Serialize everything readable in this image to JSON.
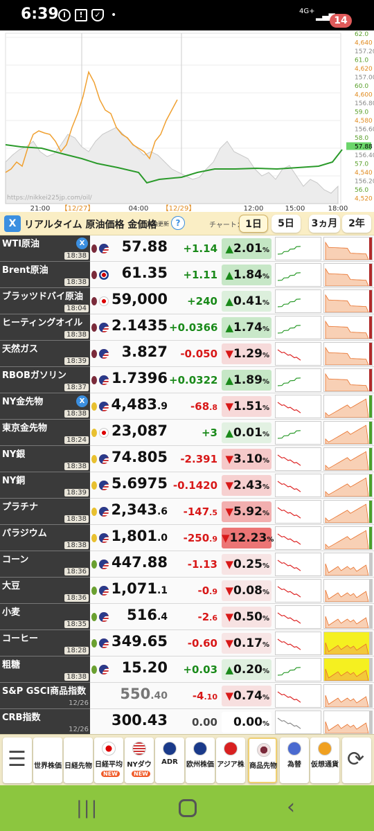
{
  "status_bar": {
    "time": "6:39",
    "battery": "14",
    "network": "4G+"
  },
  "chart": {
    "watermark": "https://nikkei225jp.com/oil/",
    "x_labels": [
      "21:00",
      "【12/27】",
      "04:00",
      "【12/29】",
      "12:00",
      "15:00",
      "18:00"
    ],
    "right_labels": [
      {
        "t": "62.0",
        "c": "#5aa02c"
      },
      {
        "t": "4,640",
        "c": "#e08a1e"
      },
      {
        "t": "157.20",
        "c": "#888"
      },
      {
        "t": "61.0",
        "c": "#5aa02c"
      },
      {
        "t": "4,620",
        "c": "#e08a1e"
      },
      {
        "t": "157.00",
        "c": "#888"
      },
      {
        "t": "60.0",
        "c": "#5aa02c"
      },
      {
        "t": "4,600",
        "c": "#e08a1e"
      },
      {
        "t": "156.80",
        "c": "#888"
      },
      {
        "t": "59.0",
        "c": "#5aa02c"
      },
      {
        "t": "4,580",
        "c": "#e08a1e"
      },
      {
        "t": "156.60",
        "c": "#888"
      },
      {
        "t": "58.0",
        "c": "#5aa02c"
      },
      {
        "t": "57.88",
        "c": "#000"
      },
      {
        "t": "156.40",
        "c": "#888"
      },
      {
        "t": "57.0",
        "c": "#5aa02c"
      },
      {
        "t": "4,540",
        "c": "#e08a1e"
      },
      {
        "t": "156.20",
        "c": "#888"
      },
      {
        "t": "56.0",
        "c": "#5aa02c"
      },
      {
        "t": "4,520",
        "c": "#e08a1e"
      }
    ]
  },
  "toolbar": {
    "title": "リアルタイム 原油価格 金価格",
    "auto": "自動更新",
    "help": "?",
    "chart_label": "チャート：",
    "ranges": [
      "1日",
      "5日",
      "3ヵ月",
      "2年"
    ],
    "active_range": "1日"
  },
  "rows": [
    {
      "name": "WTI原油",
      "time": "18:38",
      "price": "57.88",
      "change": "+1.14",
      "pct": "2.01",
      "dir": "up",
      "x": true
    },
    {
      "name": "Brent原油",
      "time": "18:38",
      "price": "61.35",
      "change": "+1.11",
      "pct": "1.84",
      "dir": "up"
    },
    {
      "name": "ブラッツドバイ原油",
      "time": "18:04",
      "price": "59,000",
      "change": "+240",
      "pct": "0.41",
      "dir": "up"
    },
    {
      "name": "ヒーティングオイル",
      "time": "18:38",
      "price": "2.1435",
      "change": "+0.0366",
      "pct": "1.74",
      "dir": "up"
    },
    {
      "name": "天然ガス",
      "time": "18:39",
      "price": "3.827",
      "change": "-0.050",
      "pct": "1.29",
      "dir": "dn"
    },
    {
      "name": "RBOBガソリン",
      "time": "18:37",
      "price": "1.7396",
      "change": "+0.0322",
      "pct": "1.89",
      "dir": "up"
    },
    {
      "name": "NY金先物",
      "time": "18:38",
      "price": "4,483",
      "price_small": ".9",
      "change": "-68",
      "change_small": ".8",
      "pct": "1.51",
      "dir": "dn",
      "x": true
    },
    {
      "name": "東京金先物",
      "time": "18:24",
      "price": "23,087",
      "change": "+3",
      "pct": "0.01",
      "dir": "up"
    },
    {
      "name": "NY銀",
      "time": "18:38",
      "price": "74.805",
      "change": "-2.391",
      "pct": "3.10",
      "dir": "dn"
    },
    {
      "name": "NY銅",
      "time": "18:39",
      "price": "5.6975",
      "change": "-0.1420",
      "pct": "2.43",
      "dir": "dn"
    },
    {
      "name": "プラチナ",
      "time": "18:38",
      "price": "2,343",
      "price_small": ".6",
      "change": "-147",
      "change_small": ".5",
      "pct": "5.92",
      "dir": "dn"
    },
    {
      "name": "パラジウム",
      "time": "18:38",
      "price": "1,801",
      "price_small": ".0",
      "change": "-250",
      "change_small": ".9",
      "pct": "12.23",
      "dir": "dn"
    },
    {
      "name": "コーン",
      "time": "18:36",
      "price": "447.88",
      "change": "-1.13",
      "pct": "0.25",
      "dir": "dn"
    },
    {
      "name": "大豆",
      "time": "18:36",
      "price": "1,071",
      "price_small": ".1",
      "change": "-0",
      "change_small": ".9",
      "pct": "0.08",
      "dir": "dn"
    },
    {
      "name": "小麦",
      "time": "18:35",
      "price": "516",
      "price_small": ".4",
      "change": "-2",
      "change_small": ".6",
      "pct": "0.50",
      "dir": "dn"
    },
    {
      "name": "コーヒー",
      "time": "18:28",
      "price": "349.65",
      "change": "-0.60",
      "pct": "0.17",
      "dir": "dn"
    },
    {
      "name": "粗糖",
      "time": "18:38",
      "price": "15.20",
      "change": "+0.03",
      "pct": "0.20",
      "dir": "up"
    },
    {
      "name": "S&P GSCI商品指数",
      "time": "12/26",
      "price": "550",
      "price_small": ".40",
      "change": "-4",
      "change_small": ".10",
      "pct": "0.74",
      "dir": "dn",
      "grey": true
    },
    {
      "name": "CRB指数",
      "time": "12/26",
      "price": "300.43",
      "change": "0.00",
      "pct": "0.00",
      "dir": "neu",
      "grey": true
    }
  ],
  "nav": [
    {
      "label": "",
      "icon": "menu"
    },
    {
      "label": "世界株価"
    },
    {
      "label": "日経先物"
    },
    {
      "label": "日経平均",
      "new": true
    },
    {
      "label": "NYダウ",
      "new": true
    },
    {
      "label": "ADR"
    },
    {
      "label": "欧州株価"
    },
    {
      "label": "アジア株"
    },
    {
      "label": "商品先物",
      "active": true
    },
    {
      "label": "為替"
    },
    {
      "label": "仮想通貨"
    },
    {
      "label": "",
      "icon": "refresh"
    }
  ],
  "new_badge": "NEW",
  "pct_unit": "%"
}
